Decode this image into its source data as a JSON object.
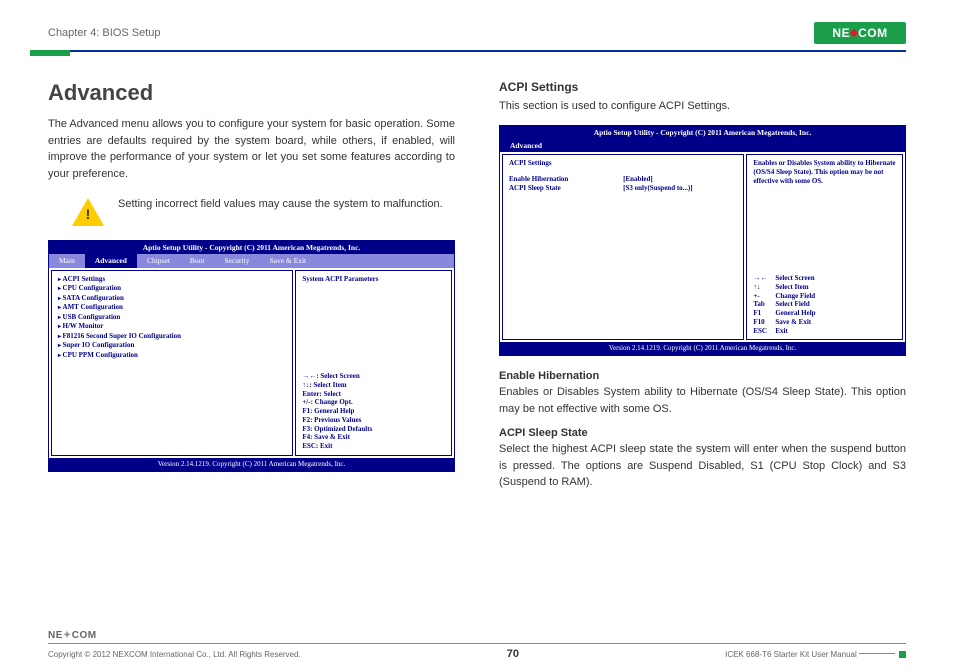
{
  "header": {
    "chapter": "Chapter 4: BIOS Setup",
    "logo_text": "NE COM"
  },
  "left_col": {
    "title": "Advanced",
    "intro": "The Advanced menu allows you to configure your system for basic operation. Some entries are defaults required by the system board, while others, if enabled, will improve the performance of your system or let you set some features according to your preference.",
    "warning": "Setting incorrect field values may cause the system to malfunction."
  },
  "bios1": {
    "title": "Aptio Setup Utility - Copyright (C) 2011 American Megatrends, Inc.",
    "tabs": [
      "Main",
      "Advanced",
      "Chipset",
      "Boot",
      "Security",
      "Save & Exit"
    ],
    "selected_tab": "Advanced",
    "items": [
      "ACPI Settings",
      "CPU Configuration",
      "SATA Configuration",
      "AMT Configuration",
      "USB Configuration",
      "H/W Monitor",
      "F81216 Second Super IO Configuration",
      "Super IO Configuration",
      "CPU PPM Configuration"
    ],
    "right_top": "System ACPI Parameters",
    "help": [
      "→←: Select Screen",
      "↑↓: Select Item",
      "Enter: Select",
      "+/-: Change Opt.",
      "F1: General Help",
      "F2: Previous Values",
      "F3: Optimized Defaults",
      "F4: Save & Exit",
      "ESC: Exit"
    ],
    "footer": "Version 2.14.1219. Copyright (C) 2011 American Megatrends, Inc."
  },
  "right_col": {
    "h2": "ACPI Settings",
    "intro": "This section is used to configure ACPI Settings.",
    "enable_h": "Enable Hibernation",
    "enable_t": "Enables or Disables System ability to Hibernate (OS/S4 Sleep State). This option may be not effective with some OS.",
    "sleep_h": "ACPI Sleep State",
    "sleep_t": "Select the highest ACPI sleep state the system will enter when the suspend button is pressed. The options are Suspend Disabled, S1 (CPU Stop Clock) and S3 (Suspend to RAM)."
  },
  "bios2": {
    "title": "Aptio Setup Utility - Copyright (C) 2011 American Megatrends, Inc.",
    "tab": "Advanced",
    "section_label": "ACPI Settings",
    "rows": [
      {
        "k": "Enable Hibernation",
        "v": "[Enabled]"
      },
      {
        "k": "ACPI Sleep State",
        "v": "[S3 only(Suspend to...)]"
      }
    ],
    "right_top": "Enables or Disables System ability to Hibernate (OS/S4 Sleep State). This option may be not effective with some OS.",
    "help": [
      {
        "k": "→←",
        "v": "Select Screen"
      },
      {
        "k": "↑↓",
        "v": "Select Item"
      },
      {
        "k": "+-",
        "v": "Change Field"
      },
      {
        "k": "Tab",
        "v": "Select Field"
      },
      {
        "k": "F1",
        "v": "General Help"
      },
      {
        "k": "F10",
        "v": "Save & Exit"
      },
      {
        "k": "ESC",
        "v": "Exit"
      }
    ],
    "footer": "Version 2.14.1219. Copyright (C) 2011 American Megatrends, Inc."
  },
  "footer": {
    "copyright": "Copyright © 2012 NEXCOM International Co., Ltd. All Rights Reserved.",
    "page": "70",
    "doc": "ICEK 668-T6 Starter Kit User Manual",
    "logo": "NE COM"
  }
}
